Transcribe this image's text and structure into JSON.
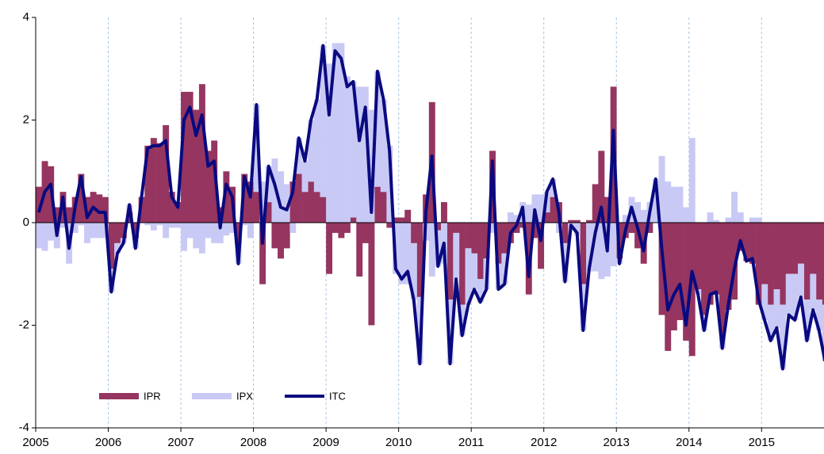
{
  "chart_data": {
    "type": "bar_line",
    "x": [
      2005,
      2005.083,
      2005.167,
      2005.25,
      2005.333,
      2005.417,
      2005.5,
      2005.583,
      2005.667,
      2005.75,
      2005.833,
      2005.917,
      2006,
      2006.083,
      2006.167,
      2006.25,
      2006.333,
      2006.417,
      2006.5,
      2006.583,
      2006.667,
      2006.75,
      2006.833,
      2006.917,
      2007,
      2007.083,
      2007.167,
      2007.25,
      2007.333,
      2007.417,
      2007.5,
      2007.583,
      2007.667,
      2007.75,
      2007.833,
      2007.917,
      2008,
      2008.083,
      2008.167,
      2008.25,
      2008.333,
      2008.417,
      2008.5,
      2008.583,
      2008.667,
      2008.75,
      2008.833,
      2008.917,
      2009,
      2009.083,
      2009.167,
      2009.25,
      2009.333,
      2009.417,
      2009.5,
      2009.583,
      2009.667,
      2009.75,
      2009.833,
      2009.917,
      2010,
      2010.083,
      2010.167,
      2010.25,
      2010.333,
      2010.417,
      2010.5,
      2010.583,
      2010.667,
      2010.75,
      2010.833,
      2010.917,
      2011,
      2011.083,
      2011.167,
      2011.25,
      2011.333,
      2011.417,
      2011.5,
      2011.583,
      2011.667,
      2011.75,
      2011.833,
      2011.917,
      2012,
      2012.083,
      2012.167,
      2012.25,
      2012.333,
      2012.417,
      2012.5,
      2012.583,
      2012.667,
      2012.75,
      2012.833,
      2012.917,
      2013,
      2013.083,
      2013.167,
      2013.25,
      2013.333,
      2013.417,
      2013.5,
      2013.583,
      2013.667,
      2013.75,
      2013.833,
      2013.917,
      2014,
      2014.083,
      2014.167,
      2014.25,
      2014.333,
      2014.417,
      2014.5,
      2014.583,
      2014.667,
      2014.75,
      2014.833,
      2014.917,
      2015,
      2015.083,
      2015.167,
      2015.25,
      2015.333,
      2015.417,
      2015.5,
      2015.583,
      2015.667,
      2015.75,
      2015.833
    ],
    "series": [
      {
        "name": "IPR",
        "color": "#953560",
        "kind": "bar",
        "values": [
          0.7,
          1.2,
          1.1,
          0.3,
          0.6,
          0.3,
          0.5,
          0.95,
          0.5,
          0.6,
          0.55,
          0.5,
          -0.9,
          -0.4,
          -0.3,
          0.2,
          -0.3,
          0.5,
          1.5,
          1.65,
          1.55,
          1.9,
          0.6,
          0.4,
          2.55,
          2.55,
          2.2,
          2.7,
          1.4,
          1.6,
          0.3,
          1.0,
          0.7,
          -0.4,
          0.95,
          0.8,
          0.6,
          -1.2,
          0.4,
          -0.5,
          -0.7,
          -0.5,
          0.8,
          0.95,
          0.6,
          0.8,
          0.6,
          0.5,
          -1.0,
          -0.2,
          -0.3,
          -0.2,
          0.1,
          -1.05,
          -0.4,
          -2.0,
          0.7,
          0.6,
          -0.1,
          0.1,
          0.1,
          0.25,
          -0.4,
          -1.45,
          0.55,
          2.35,
          -0.15,
          0.4,
          -1.5,
          -0.2,
          -1.6,
          -0.5,
          -0.6,
          -1.1,
          -0.7,
          1.4,
          -0.8,
          -0.6,
          -0.4,
          -0.2,
          -0.1,
          -1.4,
          -0.3,
          -0.9,
          0.2,
          0.5,
          0.4,
          -0.4,
          0.05,
          0.05,
          -1.2,
          0.05,
          0.75,
          1.4,
          0.5,
          2.65,
          -0.7,
          -0.3,
          -0.2,
          -0.5,
          -0.8,
          -0.2,
          0.0,
          -1.8,
          -2.5,
          -2.1,
          -1.9,
          -2.3,
          -2.6,
          -1.3,
          -1.8,
          -1.6,
          -1.4,
          -2.2,
          -1.7,
          -1.5,
          -0.55,
          -0.75,
          -0.8,
          -1.6,
          -1.2,
          -1.6,
          -1.3,
          -1.6,
          -1.0,
          -1.0,
          -0.8,
          -1.5,
          -1.0,
          -1.5,
          -1.6
        ]
      },
      {
        "name": "IPX",
        "color": "#c9c9f5",
        "kind": "bar",
        "values": [
          -0.5,
          -0.55,
          -0.35,
          -0.5,
          -0.1,
          -0.8,
          -0.2,
          -0.05,
          -0.4,
          -0.3,
          -0.3,
          -0.3,
          -0.45,
          -0.2,
          -0.1,
          0.15,
          -0.2,
          0,
          -0.05,
          -0.15,
          -0.05,
          -0.3,
          -0.1,
          -0.1,
          -0.55,
          -0.3,
          -0.5,
          -0.6,
          -0.3,
          -0.4,
          -0.4,
          -0.25,
          -0.2,
          -0.4,
          -0.05,
          -0.3,
          1.7,
          0.8,
          0.7,
          1.25,
          1.0,
          0.75,
          -0.2,
          0.7,
          0.6,
          1.2,
          1.8,
          2.95,
          3.1,
          3.5,
          3.5,
          2.85,
          2.65,
          2.65,
          2.65,
          2.2,
          2.25,
          1.8,
          1.5,
          -1.0,
          -1.2,
          -1.2,
          -1.1,
          -1.3,
          -0.35,
          -1.05,
          -0.7,
          -0.8,
          -1.25,
          -0.9,
          -0.6,
          -1.1,
          -0.7,
          -0.45,
          -0.6,
          -0.2,
          -0.5,
          -0.6,
          0.2,
          0.15,
          0.4,
          0.35,
          0.55,
          0.55,
          0.4,
          0.35,
          -0.2,
          -0.75,
          -0.1,
          -0.25,
          -0.9,
          -0.95,
          -0.95,
          -1.1,
          -1.05,
          -0.85,
          -0.1,
          0.15,
          0.5,
          0.4,
          0.25,
          0.4,
          0.85,
          1.3,
          0.8,
          0.7,
          0.7,
          0.3,
          1.65,
          -0.1,
          -0.3,
          0.2,
          0.05,
          -0.25,
          0.1,
          0.6,
          0.2,
          0,
          0.1,
          0.1,
          -0.7,
          -0.7,
          -0.75,
          -1.25,
          -0.8,
          -0.9,
          -0.65,
          -0.8,
          -0.7,
          -0.6,
          -1.1
        ]
      },
      {
        "name": "ITC",
        "color": "#0a0a80",
        "kind": "line",
        "values": [
          0.2,
          0.6,
          0.75,
          -0.25,
          0.5,
          -0.5,
          0.3,
          0.9,
          0.1,
          0.3,
          0.2,
          0.2,
          -1.35,
          -0.6,
          -0.4,
          0.35,
          -0.5,
          0.5,
          1.45,
          1.5,
          1.5,
          1.6,
          0.5,
          0.3,
          2.0,
          2.25,
          1.7,
          2.1,
          1.1,
          1.2,
          -0.1,
          0.75,
          0.5,
          -0.8,
          0.9,
          0.5,
          2.3,
          -0.4,
          1.1,
          0.75,
          0.3,
          0.25,
          0.6,
          1.65,
          1.2,
          2.0,
          2.4,
          3.45,
          2.1,
          3.35,
          3.2,
          2.65,
          2.75,
          1.6,
          2.25,
          0.2,
          2.95,
          2.4,
          1.4,
          -0.9,
          -1.1,
          -0.95,
          -1.5,
          -2.75,
          0.2,
          1.3,
          -0.85,
          -0.4,
          -2.75,
          -1.1,
          -2.2,
          -1.6,
          -1.3,
          -1.55,
          -1.3,
          1.2,
          -1.3,
          -1.2,
          -0.2,
          -0.05,
          0.3,
          -1.05,
          0.25,
          -0.35,
          0.6,
          0.85,
          0.2,
          -1.15,
          -0.05,
          -0.2,
          -2.1,
          -0.9,
          -0.2,
          0.3,
          -0.55,
          1.8,
          -0.8,
          -0.15,
          0.3,
          -0.1,
          -0.55,
          0.2,
          0.85,
          -0.5,
          -1.7,
          -1.4,
          -1.2,
          -2.0,
          -0.95,
          -1.4,
          -2.1,
          -1.4,
          -1.35,
          -2.45,
          -1.6,
          -0.9,
          -0.35,
          -0.75,
          -0.7,
          -1.5,
          -1.9,
          -2.3,
          -2.05,
          -2.85,
          -1.8,
          -1.9,
          -1.45,
          -2.3,
          -1.7,
          -2.1,
          -2.7
        ]
      }
    ],
    "stacked": true,
    "xlim": [
      2005,
      2015.86
    ],
    "xticks": [
      2005,
      2006,
      2007,
      2008,
      2009,
      2010,
      2011,
      2012,
      2013,
      2014,
      2015
    ],
    "ylim": [
      -4,
      4
    ],
    "yticks": [
      -4,
      -2,
      0,
      2,
      4
    ],
    "grid": true,
    "legend": "lower left"
  }
}
